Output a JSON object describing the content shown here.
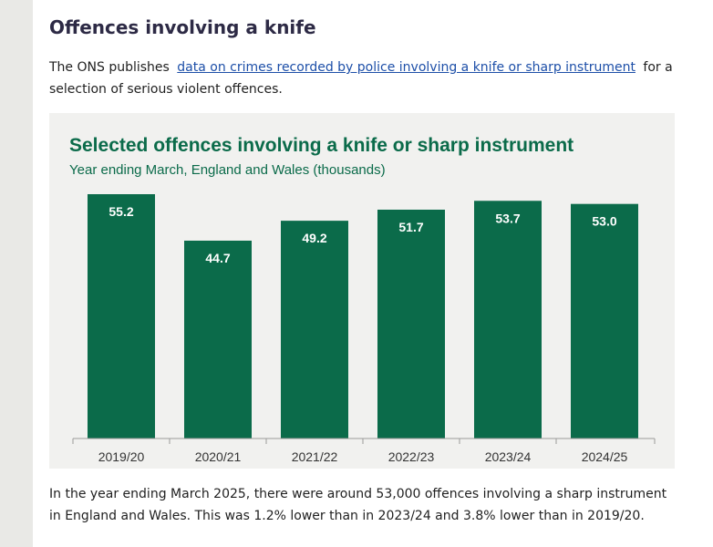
{
  "article": {
    "heading": "Offences involving a knife",
    "intro_before": "The ONS publishes",
    "intro_link": "data on crimes recorded by police involving a knife or sharp instrument",
    "intro_after": "for a selection of serious violent offences.",
    "outro": "In the year ending March 2025, there were around 53,000 offences involving a sharp instrument in England and Wales. This was 1.2% lower than in 2023/24 and 3.8% lower than in 2019/20."
  },
  "chart_data": {
    "type": "bar",
    "title": "Selected offences involving a knife or sharp instrument",
    "subtitle": "Year ending March, England and Wales (thousands)",
    "categories": [
      "2019/20",
      "2020/21",
      "2021/22",
      "2022/23",
      "2023/24",
      "2024/25"
    ],
    "values": [
      55.2,
      44.7,
      49.2,
      51.7,
      53.7,
      53.0
    ],
    "data_labels": [
      "55.2",
      "44.7",
      "49.2",
      "51.7",
      "53.7",
      "53.0"
    ],
    "ylim": [
      0,
      55.2
    ],
    "grid": false,
    "bar_color": "#0b6b4a",
    "title_color": "#0b6b4a",
    "label_color": "#ffffff"
  }
}
